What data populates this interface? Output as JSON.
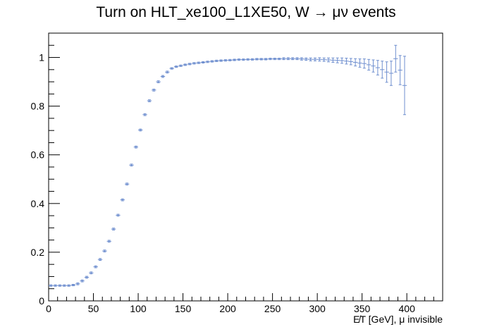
{
  "chart_data": {
    "type": "scatter",
    "title": "Turn on HLT_xe100_L1XE50, W → μν events",
    "xlabel": "E̸T [GeV], μ invisible",
    "ylabel": "",
    "xlim": [
      0,
      440
    ],
    "ylim": [
      0,
      1.1
    ],
    "x_tick_labels": [
      "0",
      "50",
      "100",
      "150",
      "200",
      "250",
      "300",
      "350",
      "400"
    ],
    "y_tick_labels": [
      "0",
      "0.2",
      "0.4",
      "0.6",
      "0.8",
      "1"
    ],
    "grid": false,
    "legend": "none",
    "colors": {
      "markers": "#6f8fcf"
    },
    "series": [
      {
        "bin_width": 5,
        "x": [
          2.5,
          7.5,
          12.5,
          17.5,
          22.5,
          27.5,
          32.5,
          37.5,
          42.5,
          47.5,
          52.5,
          57.5,
          62.5,
          67.5,
          72.5,
          77.5,
          82.5,
          87.5,
          92.5,
          97.5,
          102.5,
          107.5,
          112.5,
          117.5,
          122.5,
          127.5,
          132.5,
          137.5,
          142.5,
          147.5,
          152.5,
          157.5,
          162.5,
          167.5,
          172.5,
          177.5,
          182.5,
          187.5,
          192.5,
          197.5,
          202.5,
          207.5,
          212.5,
          217.5,
          222.5,
          227.5,
          232.5,
          237.5,
          242.5,
          247.5,
          252.5,
          257.5,
          262.5,
          267.5,
          272.5,
          277.5,
          282.5,
          287.5,
          292.5,
          297.5,
          302.5,
          307.5,
          312.5,
          317.5,
          322.5,
          327.5,
          332.5,
          337.5,
          342.5,
          347.5,
          352.5,
          357.5,
          362.5,
          367.5,
          372.5,
          377.5,
          382.5,
          387.5,
          392.5,
          397.5
        ],
        "y": [
          0.063,
          0.063,
          0.063,
          0.063,
          0.063,
          0.065,
          0.07,
          0.082,
          0.097,
          0.115,
          0.14,
          0.17,
          0.205,
          0.245,
          0.295,
          0.352,
          0.415,
          0.48,
          0.558,
          0.632,
          0.702,
          0.765,
          0.822,
          0.866,
          0.9,
          0.922,
          0.94,
          0.955,
          0.962,
          0.966,
          0.97,
          0.973,
          0.976,
          0.978,
          0.98,
          0.982,
          0.984,
          0.986,
          0.987,
          0.988,
          0.989,
          0.99,
          0.991,
          0.991,
          0.992,
          0.992,
          0.993,
          0.993,
          0.993,
          0.994,
          0.994,
          0.994,
          0.995,
          0.995,
          0.995,
          0.995,
          0.994,
          0.993,
          0.992,
          0.992,
          0.992,
          0.991,
          0.99,
          0.989,
          0.988,
          0.987,
          0.985,
          0.983,
          0.98,
          0.977,
          0.975,
          0.97,
          0.965,
          0.958,
          0.95,
          0.94,
          0.935,
          0.995,
          0.948,
          0.885
        ],
        "yerr": [
          0.003,
          0.003,
          0.003,
          0.003,
          0.003,
          0.003,
          0.004,
          0.004,
          0.004,
          0.004,
          0.004,
          0.004,
          0.004,
          0.004,
          0.004,
          0.004,
          0.004,
          0.004,
          0.004,
          0.004,
          0.004,
          0.004,
          0.004,
          0.004,
          0.004,
          0.004,
          0.004,
          0.003,
          0.003,
          0.003,
          0.003,
          0.003,
          0.003,
          0.003,
          0.003,
          0.003,
          0.003,
          0.003,
          0.003,
          0.003,
          0.003,
          0.003,
          0.003,
          0.003,
          0.003,
          0.003,
          0.003,
          0.003,
          0.003,
          0.003,
          0.003,
          0.003,
          0.004,
          0.004,
          0.004,
          0.004,
          0.005,
          0.005,
          0.006,
          0.006,
          0.007,
          0.007,
          0.008,
          0.009,
          0.01,
          0.011,
          0.012,
          0.013,
          0.015,
          0.017,
          0.019,
          0.022,
          0.025,
          0.03,
          0.035,
          0.042,
          0.05,
          0.055,
          0.06,
          0.12
        ]
      }
    ]
  }
}
